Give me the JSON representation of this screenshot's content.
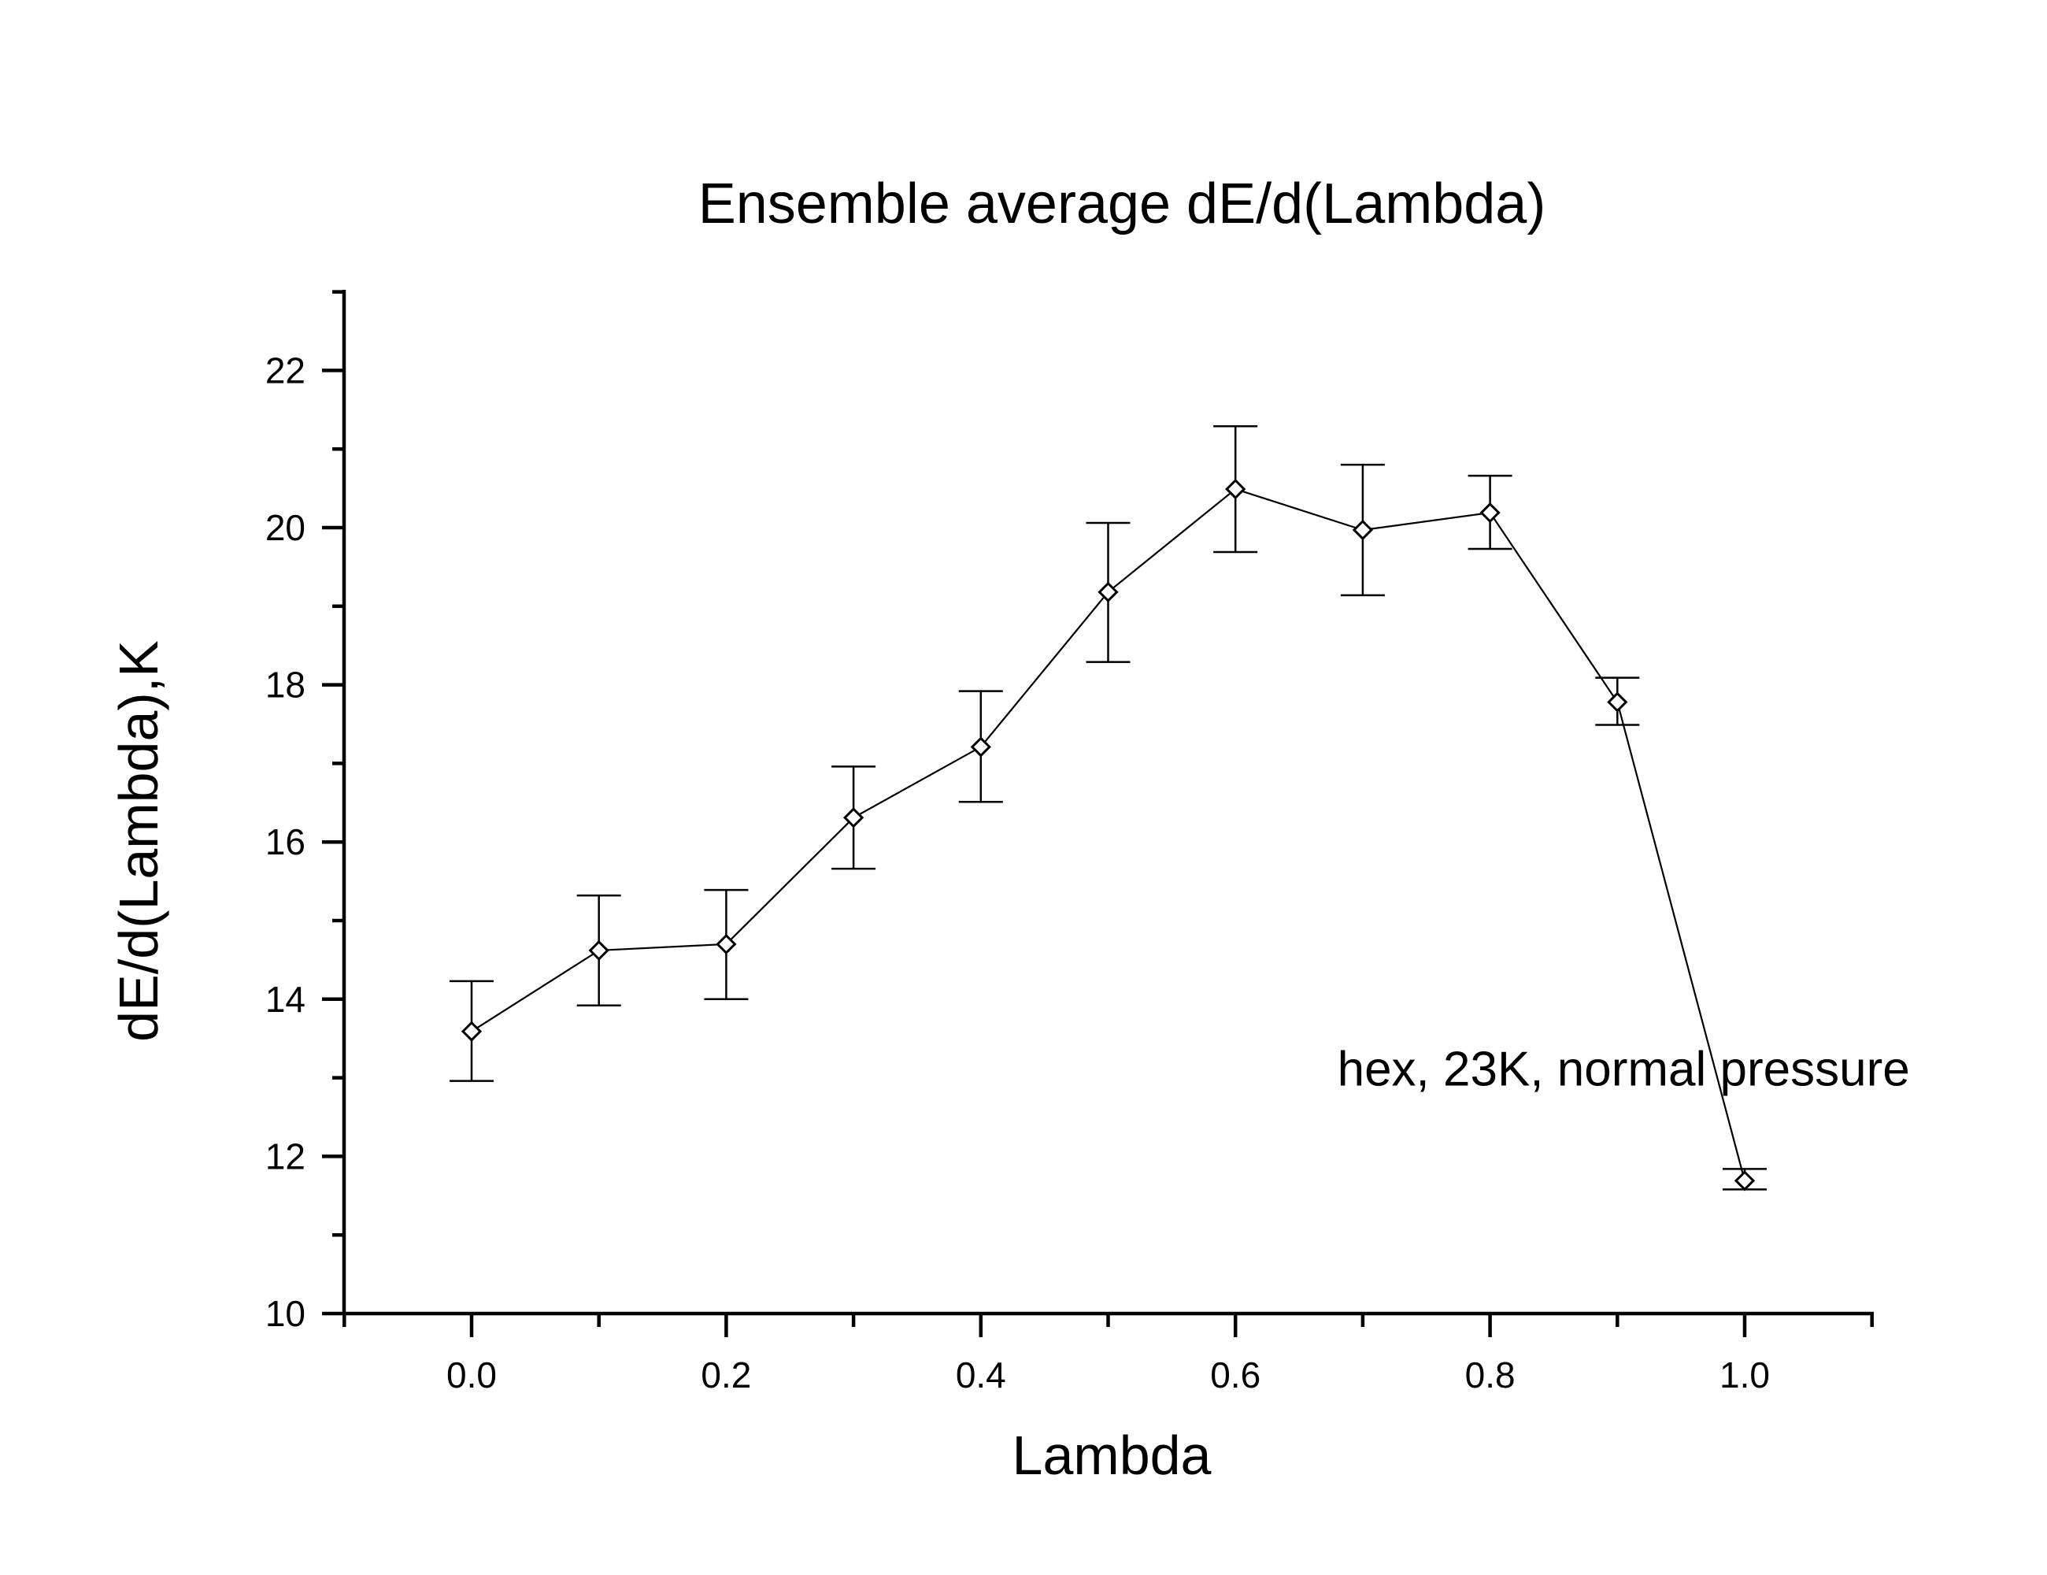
{
  "chart_data": {
    "type": "line",
    "title": "Ensemble average dE/d(Lambda)",
    "xlabel": "Lambda",
    "ylabel": "dE/d(Lambda),K",
    "xlim": [
      -0.1,
      1.1
    ],
    "ylim": [
      10,
      23
    ],
    "x_ticks": [
      0.0,
      0.2,
      0.4,
      0.6,
      0.8,
      1.0
    ],
    "x_tick_labels": [
      "0.0",
      "0.2",
      "0.4",
      "0.6",
      "0.8",
      "1.0"
    ],
    "x_minor_ticks": [
      -0.1,
      0.1,
      0.3,
      0.5,
      0.7,
      0.9,
      1.1
    ],
    "y_ticks": [
      10,
      12,
      14,
      16,
      18,
      20,
      22
    ],
    "y_tick_labels": [
      "10",
      "12",
      "14",
      "16",
      "18",
      "20",
      "22"
    ],
    "y_minor_ticks": [
      11,
      13,
      15,
      17,
      19,
      21,
      23
    ],
    "grid": false,
    "legend": null,
    "marker": "open-diamond",
    "annotations": [
      {
        "text": "hex, 23K, normal pressure",
        "x": 0.68,
        "y": 12.9
      }
    ],
    "series": [
      {
        "name": "dE/d(Lambda)",
        "x": [
          0.0,
          0.1,
          0.2,
          0.3,
          0.4,
          0.5,
          0.6,
          0.7,
          0.8,
          0.9,
          1.0
        ],
        "y": [
          13.59,
          14.62,
          14.7,
          16.31,
          17.21,
          19.18,
          20.49,
          19.97,
          20.19,
          17.78,
          11.69
        ],
        "err_low": [
          12.96,
          13.92,
          14.0,
          15.66,
          16.51,
          18.29,
          19.69,
          19.14,
          19.73,
          17.49,
          11.58
        ],
        "err_high": [
          14.23,
          15.32,
          15.39,
          16.96,
          17.92,
          20.06,
          21.29,
          20.8,
          20.66,
          18.09,
          11.84
        ]
      }
    ]
  }
}
